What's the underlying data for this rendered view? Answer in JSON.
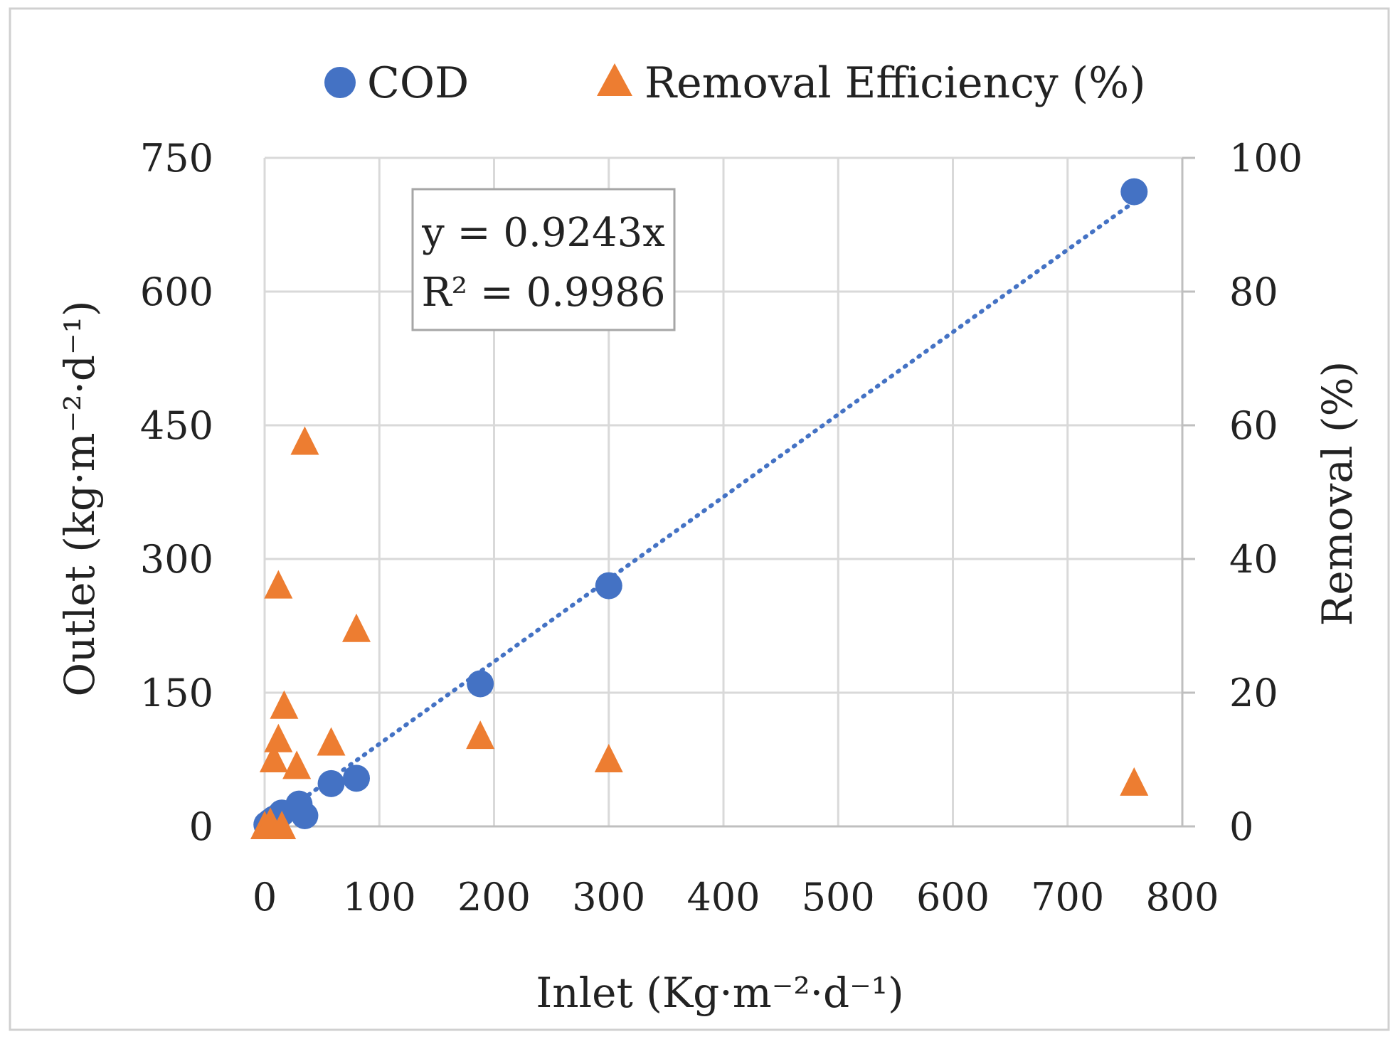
{
  "chart_data": {
    "type": "scatter",
    "legend": {
      "placement": "top",
      "entries": [
        "COD",
        "Removal Efficiency (%)"
      ]
    },
    "xlabel": "Inlet (Kg·m⁻²·d⁻¹)",
    "ylabel_left": "Outlet (kg·m⁻²·d⁻¹)",
    "ylabel_right": "Removal (%)",
    "xlim": [
      0,
      800
    ],
    "xticks": [
      "0",
      "100",
      "200",
      "300",
      "400",
      "500",
      "600",
      "700",
      "800"
    ],
    "ylim_left": [
      0,
      750
    ],
    "yticks_left": [
      "0",
      "150",
      "300",
      "450",
      "600",
      "750"
    ],
    "ylim_right": [
      0,
      100
    ],
    "yticks_right": [
      "0",
      "20",
      "40",
      "60",
      "80",
      "100"
    ],
    "grid": true,
    "series": [
      {
        "name": "COD",
        "axis": "left",
        "marker": "circle",
        "color": "#4472C4",
        "x": [
          2,
          5,
          8,
          12,
          15,
          30,
          35,
          58,
          80,
          188,
          300,
          758
        ],
        "y": [
          2,
          5,
          8,
          11,
          15,
          25,
          12,
          48,
          54,
          160,
          270,
          712
        ]
      },
      {
        "name": "Removal Efficiency (%)",
        "axis": "right",
        "marker": "triangle",
        "color": "#ED7D31",
        "x": [
          0,
          5,
          8,
          12,
          12,
          15,
          17,
          28,
          35,
          58,
          80,
          188,
          300,
          758
        ],
        "y": [
          0,
          0.5,
          10,
          13,
          36,
          0,
          18,
          9,
          57.5,
          12.5,
          29.5,
          13.5,
          10,
          6.5
        ]
      }
    ],
    "trendline": {
      "series": "COD",
      "style": "dotted",
      "color": "#4472C4",
      "slope": 0.9243,
      "x_range": [
        2,
        758
      ],
      "equation": "y = 0.9243x",
      "r_squared": "R² = 0.9986"
    }
  }
}
